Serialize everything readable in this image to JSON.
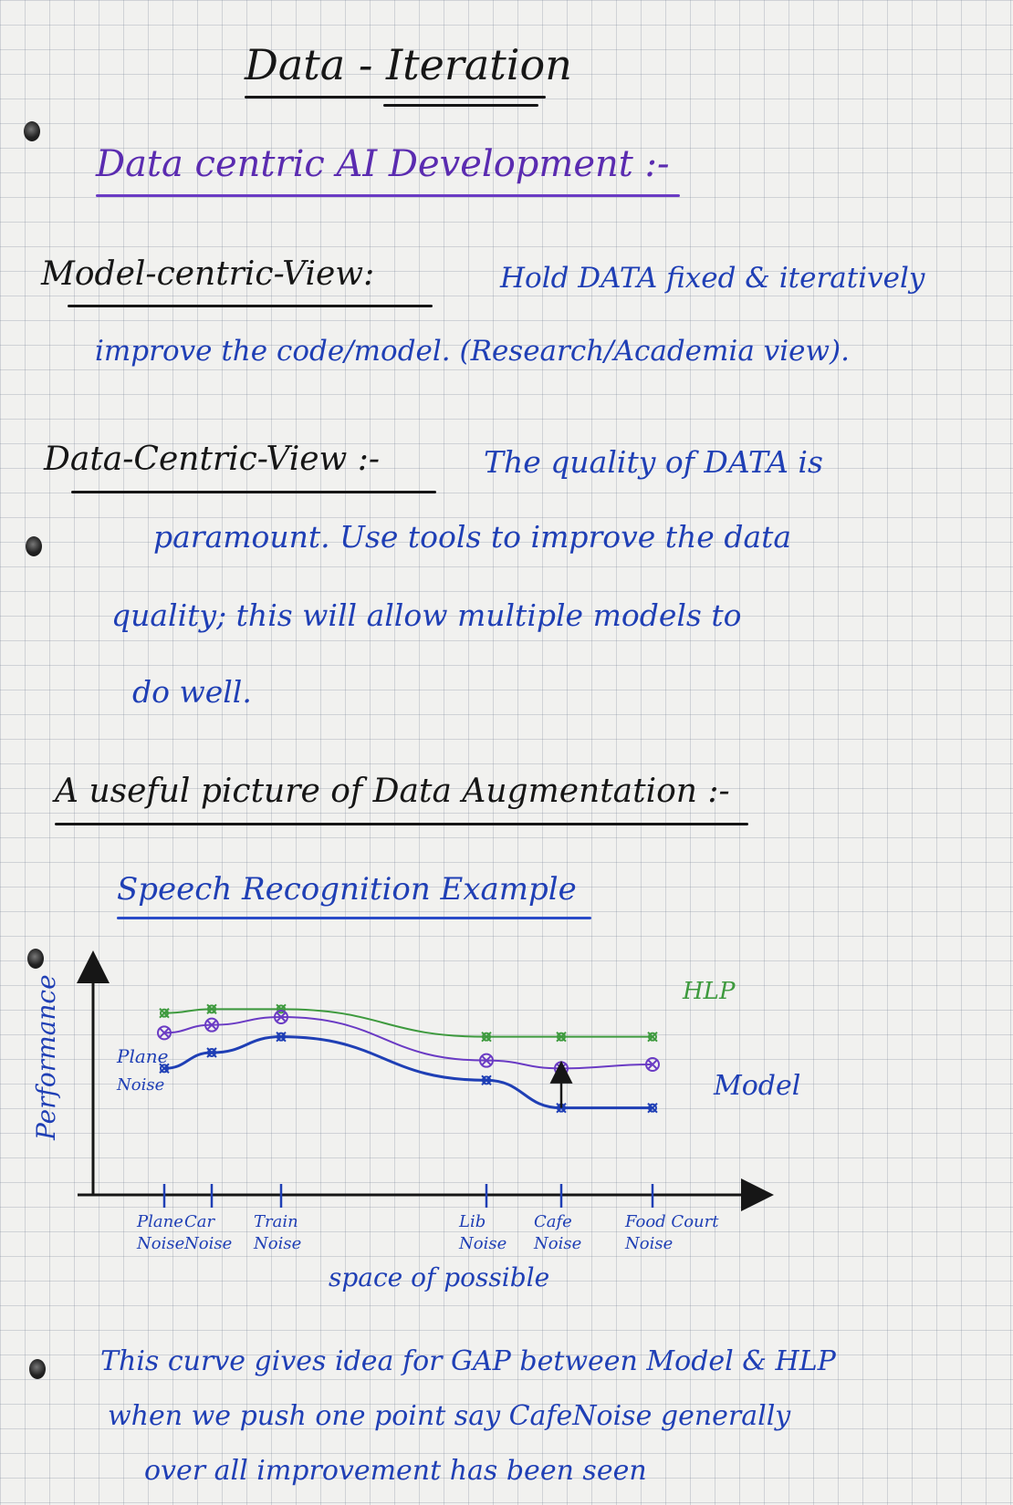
{
  "title": "Data - Iteration",
  "subtitle": "Data centric AI Development :-",
  "model_centric": {
    "label": "Model-centric-View:",
    "line1": "Hold DATA fixed & iteratively",
    "line2": "improve the code/model. (Research/Academia view)."
  },
  "data_centric": {
    "label": "Data-Centric-View :-",
    "line1": "The quality of DATA is",
    "line2": "paramount. Use tools to improve the data",
    "line3": "quality; this will allow multiple models to",
    "line4": "do well."
  },
  "augmentation": {
    "heading": "A useful picture of Data Augmentation :-",
    "example": "Speech Recognition Example"
  },
  "chart_data": {
    "type": "line",
    "title": "",
    "xlabel": "space of possible",
    "ylabel": "Performance",
    "categories": [
      "Plane Noise",
      "Car Noise",
      "Train Noise",
      "Lib Noise",
      "Cafe Noise",
      "Food Court Noise"
    ],
    "series": [
      {
        "name": "HLP",
        "color": "#3e9a3e",
        "values": [
          7.6,
          7.7,
          7.7,
          7.0,
          7.0,
          7.0
        ]
      },
      {
        "name": "",
        "color": "#6a3bc4",
        "values": [
          7.1,
          7.3,
          7.5,
          6.4,
          6.2,
          6.3
        ]
      },
      {
        "name": "Model",
        "color": "#1f3fb5",
        "values": [
          6.2,
          6.6,
          7.0,
          5.9,
          5.2,
          5.2
        ]
      }
    ],
    "point_labels": [
      "Plane",
      "Noise"
    ],
    "ylim": [
      3,
      9
    ],
    "grid": false
  },
  "conclusion": {
    "line1": "This curve gives idea for GAP between Model & HLP",
    "line2": "when we push one point say CafeNoise generally",
    "line3": "over all improvement has been seen"
  }
}
